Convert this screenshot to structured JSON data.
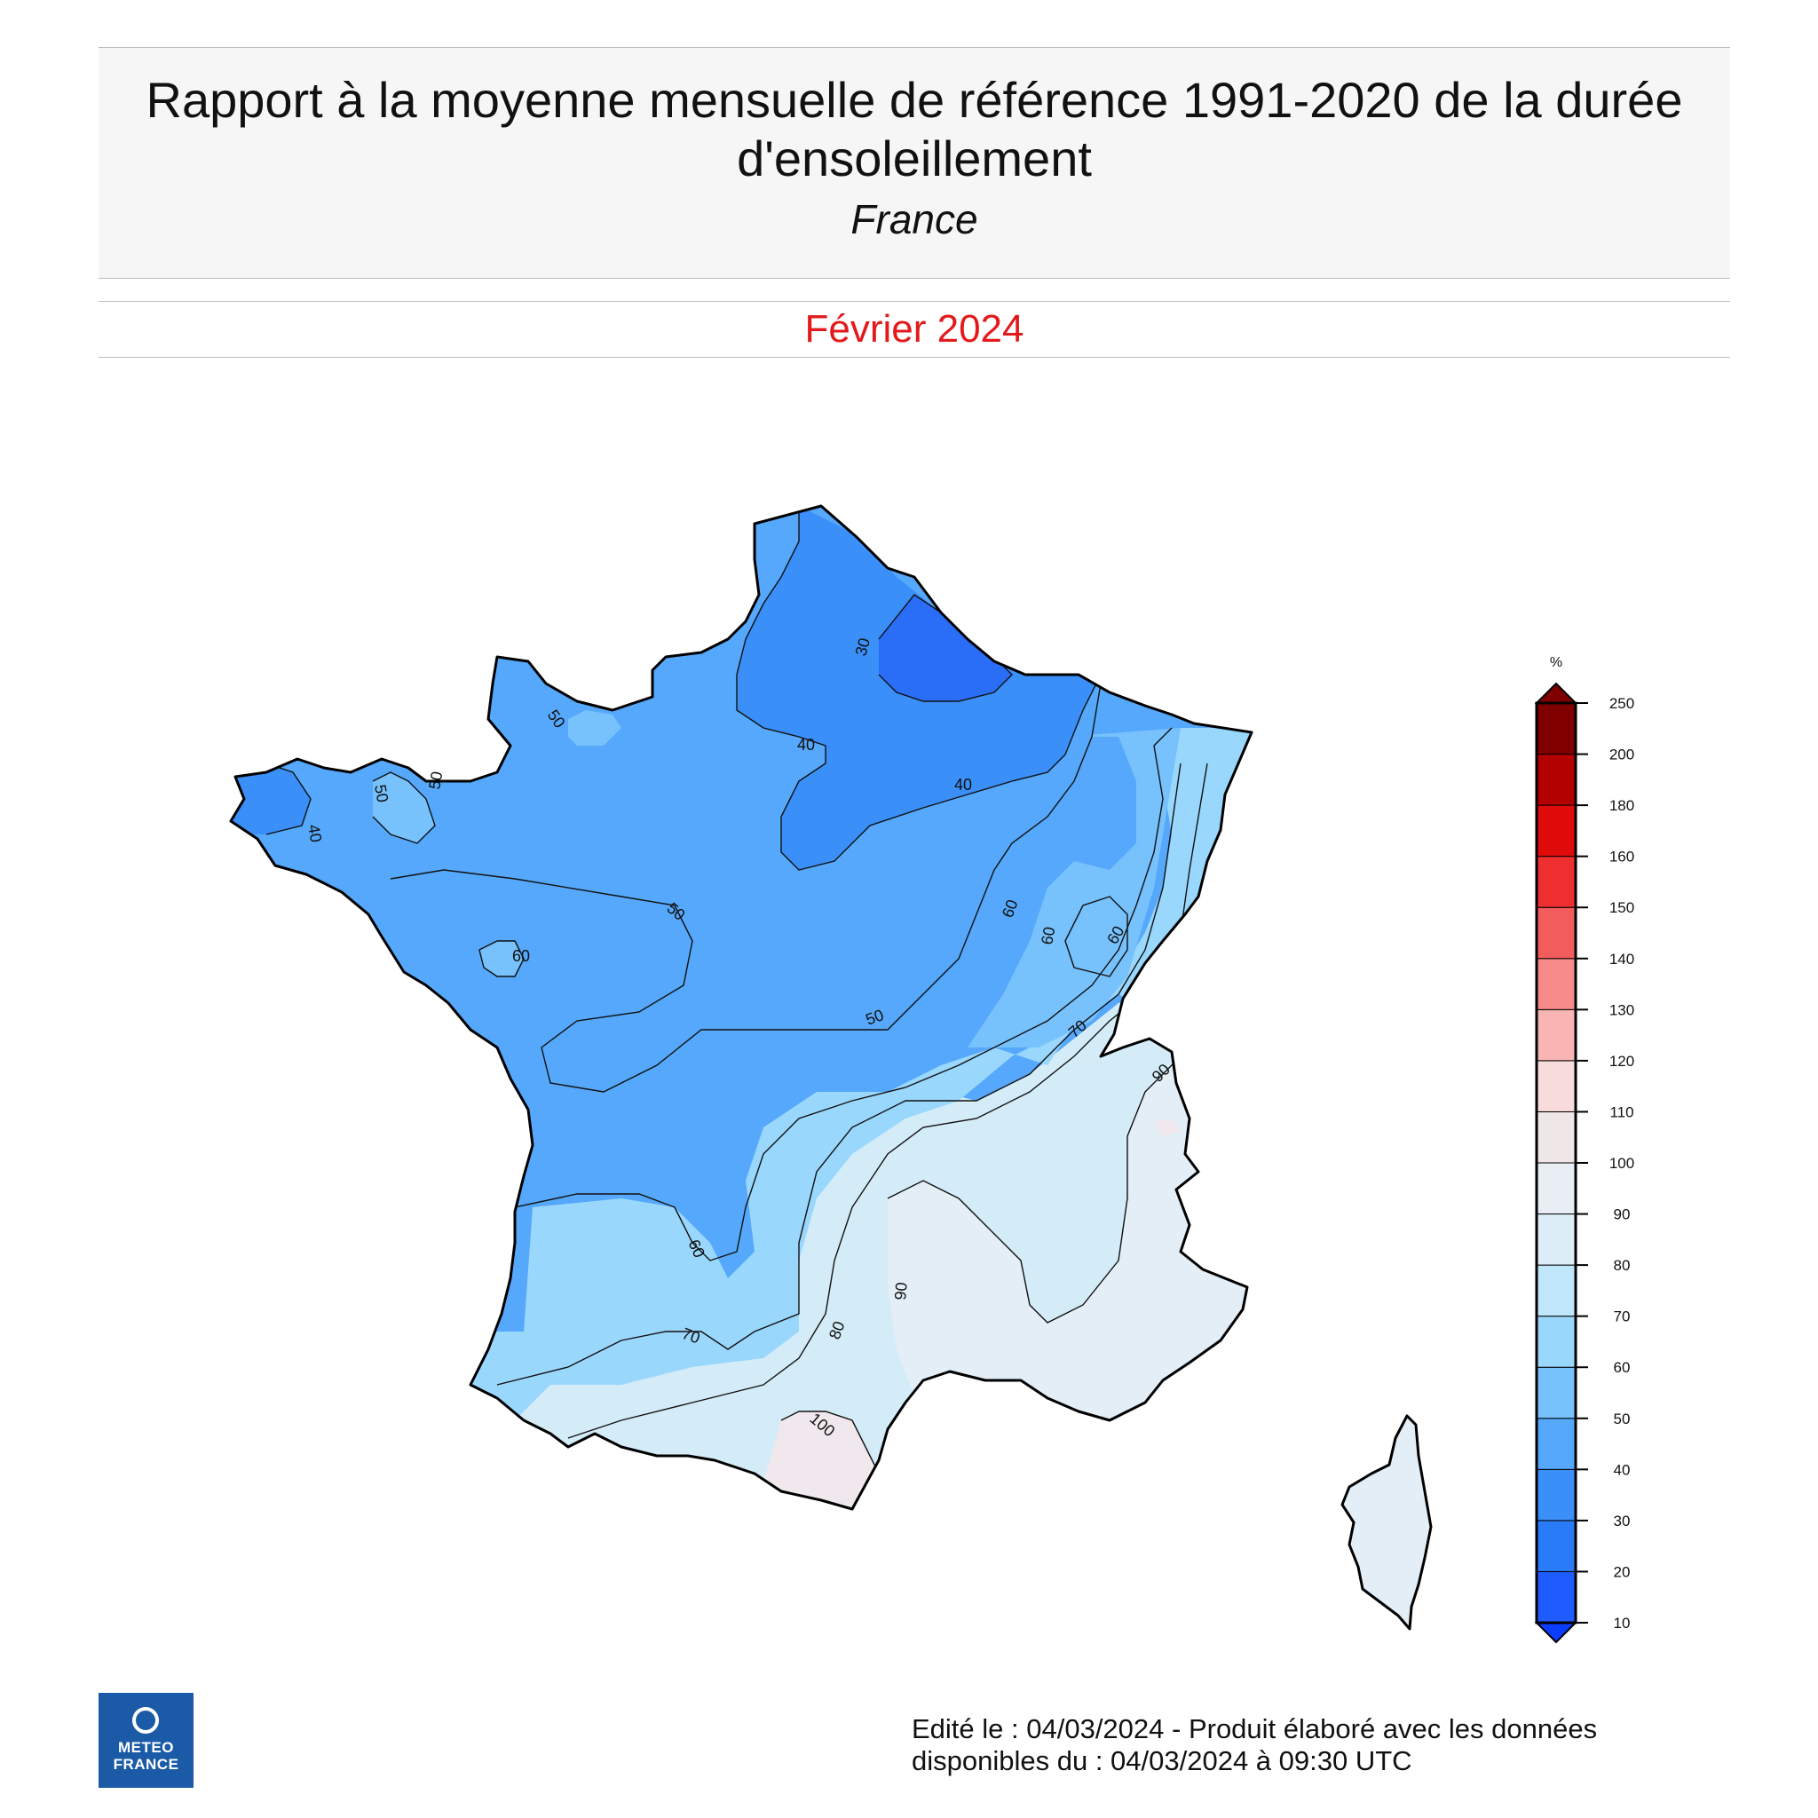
{
  "header": {
    "title": "Rapport à la moyenne mensuelle de référence 1991-2020 de la durée d'ensoleillement",
    "region": "France",
    "period": "Février 2024"
  },
  "legend": {
    "unit": "%",
    "tick_labels": [
      "10",
      "20",
      "30",
      "40",
      "50",
      "60",
      "70",
      "80",
      "90",
      "100",
      "110",
      "120",
      "130",
      "140",
      "150",
      "160",
      "180",
      "200",
      "250"
    ],
    "colors": [
      "#0a3dff",
      "#1f5cff",
      "#2a7bf7",
      "#3a8ff8",
      "#55a8fb",
      "#77c1fc",
      "#9ad7fd",
      "#c0e6fb",
      "#dcedf7",
      "#e9eef5",
      "#efe6e8",
      "#f8dcdc",
      "#f9b4b4",
      "#f78a8a",
      "#f35c5c",
      "#ef2f2f",
      "#e00c0c",
      "#b30000",
      "#800000"
    ]
  },
  "map": {
    "contour_labels": [
      "30",
      "40",
      "40",
      "40",
      "50",
      "50",
      "50",
      "50",
      "50",
      "60",
      "60",
      "60",
      "60",
      "60",
      "70",
      "70",
      "80",
      "90",
      "90",
      "100"
    ],
    "colors": {
      "lt30": "#2a6ef8",
      "c30_40": "#3a8ff8",
      "c40_50": "#55a8fb",
      "c50_60": "#77c1fc",
      "c60_70": "#9ad7fd",
      "c70_80": "#bfe5fb",
      "c80_90": "#d4ecf8",
      "c90_100": "#e3eef7",
      "c100_110": "#f0e8ec",
      "outline": "#000000"
    }
  },
  "footer": {
    "line1": "Edité le : 04/03/2024 - Produit élaboré avec les données",
    "line2": "disponibles du : 04/03/2024 à 09:30 UTC"
  },
  "logo": {
    "line1": "METEO",
    "line2": "FRANCE"
  }
}
